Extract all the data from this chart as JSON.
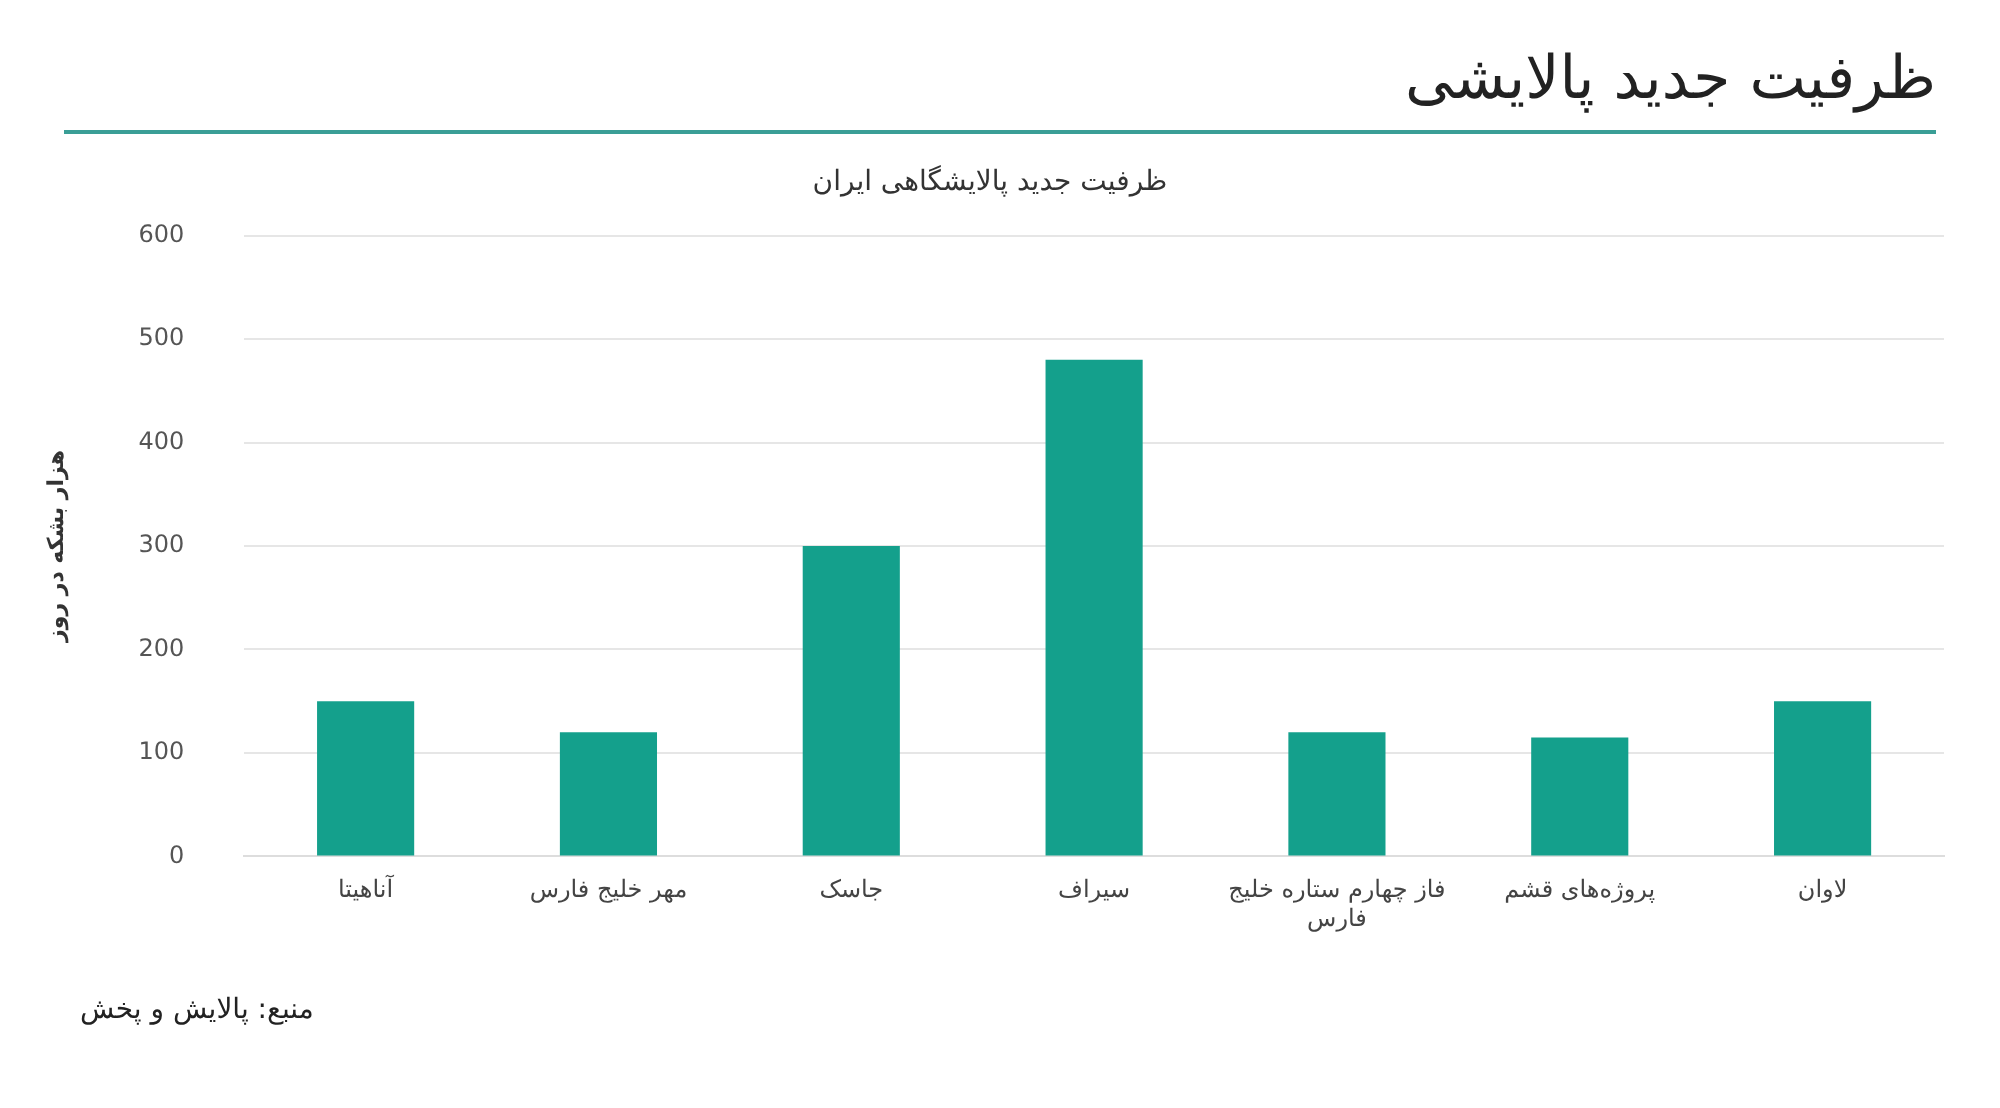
{
  "chart_data": {
    "type": "bar",
    "title": "ظرفیت جدید پالایشی",
    "subtitle": "ظرفیت جدید پالایشگاهی ایران",
    "ylabel": "هزار بشکه در روز",
    "categories": [
      "آناهیتا",
      "مهر خلیج فارس",
      "جاسک",
      "سیراف",
      "فاز چهارم ستاره خلیج فارس",
      "پروژه‌های قشم",
      "لاوان"
    ],
    "values": [
      150,
      120,
      300,
      480,
      120,
      115,
      150
    ],
    "color": "#14a08c",
    "ylim": [
      0,
      600
    ],
    "yticks": [
      0,
      100,
      200,
      300,
      400,
      500,
      600
    ],
    "grid": "y",
    "legend": false,
    "annotations": [
      "منبع: پالایش و پخش"
    ]
  }
}
